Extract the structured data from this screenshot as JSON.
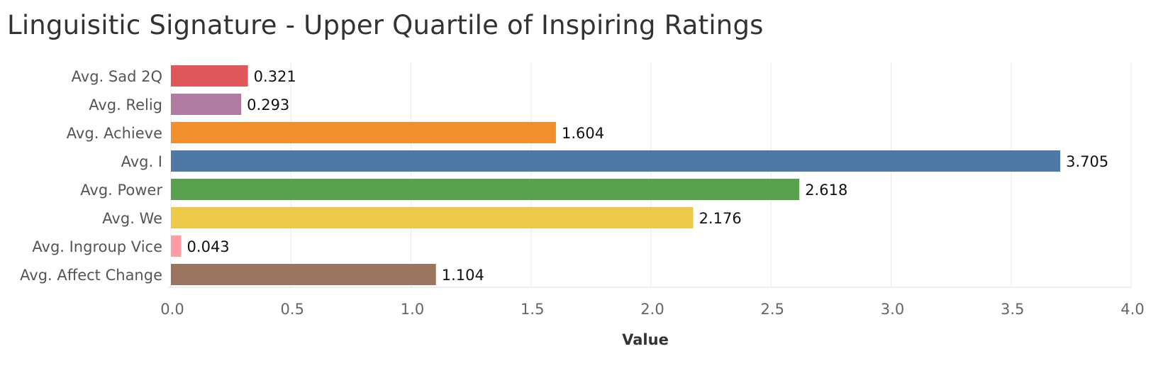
{
  "chart_data": {
    "type": "bar",
    "orientation": "horizontal",
    "title": "Linguisitic Signature  - Upper Quartile of Inspiring Ratings",
    "xlabel": "Value",
    "ylabel": "",
    "xlim": [
      0,
      4
    ],
    "ticks": [
      "0.0",
      "0.5",
      "1.0",
      "1.5",
      "2.0",
      "2.5",
      "3.0",
      "3.5",
      "4.0"
    ],
    "tick_values": [
      0,
      0.5,
      1.0,
      1.5,
      2.0,
      2.5,
      3.0,
      3.5,
      4.0
    ],
    "grid": true,
    "categories": [
      "Avg. Sad 2Q",
      "Avg. Relig",
      "Avg. Achieve",
      "Avg. I",
      "Avg. Power",
      "Avg. We",
      "Avg. Ingroup Vice",
      "Avg. Affect Change"
    ],
    "values": [
      0.321,
      0.293,
      1.604,
      3.705,
      2.618,
      2.176,
      0.043,
      1.104
    ],
    "value_labels": [
      "0.321",
      "0.293",
      "1.604",
      "3.705",
      "2.618",
      "2.176",
      "0.043",
      "1.104"
    ],
    "colors": [
      "#e15759",
      "#b07aa1",
      "#f28e2b",
      "#4e79a7",
      "#59a14f",
      "#edc948",
      "#ff9da7",
      "#9c755f"
    ]
  }
}
